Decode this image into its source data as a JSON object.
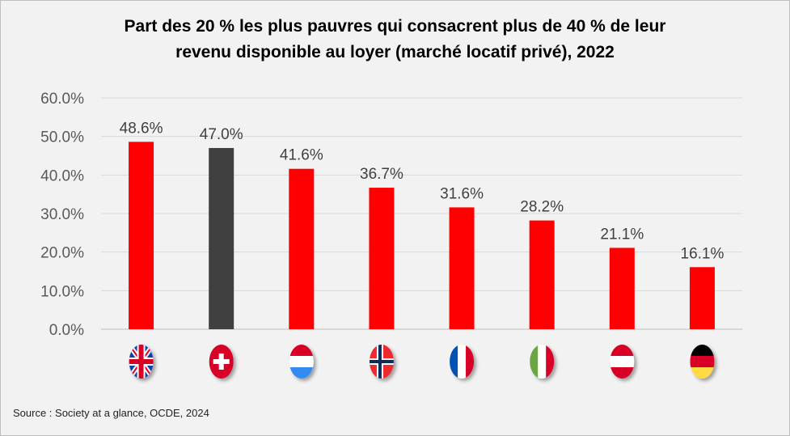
{
  "chart_data": {
    "type": "bar",
    "title_line1": "Part des 20 % les plus pauvres qui consacrent plus de 40 % de leur",
    "title_line2": "revenu disponible au loyer (marché locatif privé), 2022",
    "categories": [
      "flag-uk",
      "flag-switzerland",
      "flag-luxembourg",
      "flag-norway",
      "flag-france",
      "flag-italy",
      "flag-austria",
      "flag-germany"
    ],
    "values": [
      48.6,
      47.0,
      41.6,
      36.7,
      31.6,
      28.2,
      21.1,
      16.1
    ],
    "data_labels": [
      "48.6%",
      "47.0%",
      "41.6%",
      "36.7%",
      "31.6%",
      "28.2%",
      "21.1%",
      "16.1%"
    ],
    "bar_colors": [
      "#ff0000",
      "#404040",
      "#ff0000",
      "#ff0000",
      "#ff0000",
      "#ff0000",
      "#ff0000",
      "#ff0000"
    ],
    "ylim": [
      0,
      60
    ],
    "yticks": [
      0,
      10,
      20,
      30,
      40,
      50,
      60
    ],
    "ytick_labels": [
      "0.0%",
      "10.0%",
      "20.0%",
      "30.0%",
      "40.0%",
      "50.0%",
      "60.0%"
    ],
    "grid": true,
    "legend": "none",
    "xlabel": "",
    "ylabel": ""
  },
  "source": "Source : Society at a glance, OCDE, 2024"
}
